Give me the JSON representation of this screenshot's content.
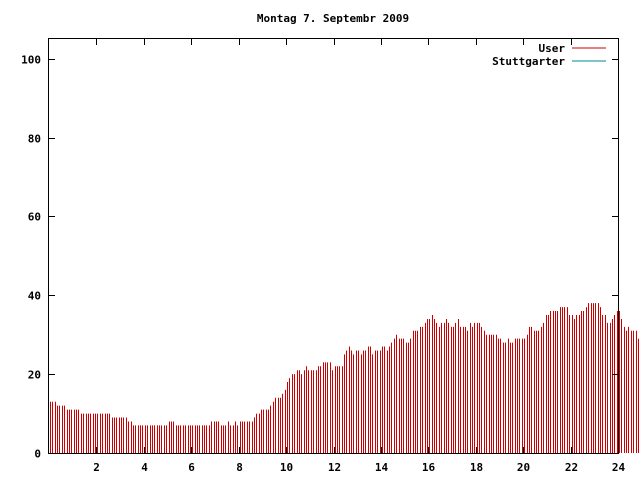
{
  "chart_data": {
    "type": "bar",
    "title": "Montag 7. Septembr 2009",
    "xlabel": "",
    "ylabel": "",
    "xlim": [
      0,
      24
    ],
    "ylim": [
      0,
      105
    ],
    "x_ticks": [
      2,
      4,
      6,
      8,
      10,
      12,
      14,
      16,
      18,
      20,
      22,
      24
    ],
    "y_ticks": [
      0,
      20,
      40,
      60,
      80,
      100
    ],
    "grid": false,
    "legend_position": "top-right",
    "sample_interval_hours": 0.1,
    "series": [
      {
        "name": "User",
        "color": "#cc0000",
        "values": [
          13,
          13,
          13,
          12,
          12,
          12,
          12,
          11,
          11,
          11,
          11,
          11,
          11,
          10,
          10,
          10,
          10,
          10,
          10,
          10,
          10,
          10,
          10,
          10,
          10,
          10,
          9,
          9,
          9,
          9,
          9,
          9,
          9,
          8,
          8,
          7,
          7,
          7,
          7,
          7,
          7,
          7,
          7,
          7,
          7,
          7,
          7,
          7,
          7,
          7,
          8,
          8,
          8,
          7,
          7,
          7,
          7,
          7,
          7,
          7,
          7,
          7,
          7,
          7,
          7,
          7,
          7,
          7,
          8,
          8,
          8,
          8,
          7,
          7,
          7,
          8,
          7,
          7,
          8,
          7,
          8,
          8,
          8,
          8,
          8,
          8,
          9,
          10,
          10,
          11,
          11,
          11,
          11,
          12,
          13,
          14,
          14,
          14,
          15,
          16,
          18,
          19,
          20,
          20,
          21,
          21,
          20,
          21,
          22,
          21,
          21,
          21,
          21,
          22,
          22,
          23,
          23,
          23,
          23,
          21,
          22,
          22,
          22,
          22,
          25,
          26,
          27,
          26,
          25,
          26,
          26,
          25,
          26,
          26,
          27,
          27,
          25,
          26,
          26,
          26,
          27,
          27,
          26,
          27,
          28,
          29,
          30,
          29,
          29,
          29,
          28,
          28,
          29,
          31,
          31,
          31,
          32,
          32,
          33,
          34,
          34,
          35,
          34,
          33,
          32,
          33,
          33,
          34,
          33,
          32,
          32,
          33,
          34,
          32,
          32,
          32,
          31,
          33,
          32,
          33,
          33,
          33,
          32,
          31,
          30,
          30,
          30,
          30,
          30,
          29,
          29,
          28,
          28,
          29,
          28,
          28,
          29,
          29,
          29,
          29,
          29,
          30,
          32,
          32,
          31,
          31,
          31,
          32,
          33,
          35,
          35,
          36,
          36,
          36,
          36,
          37,
          37,
          37,
          37,
          35,
          35,
          34,
          35,
          35,
          36,
          36,
          37,
          38,
          38,
          38,
          38,
          38,
          37,
          35,
          35,
          33,
          33,
          34,
          35,
          36,
          36,
          34,
          32,
          31,
          32,
          31,
          31,
          31,
          29,
          28,
          28,
          30,
          30,
          28,
          26,
          23
        ]
      },
      {
        "name": "Stuttgarter",
        "color": "#008b8b",
        "values": []
      }
    ]
  }
}
